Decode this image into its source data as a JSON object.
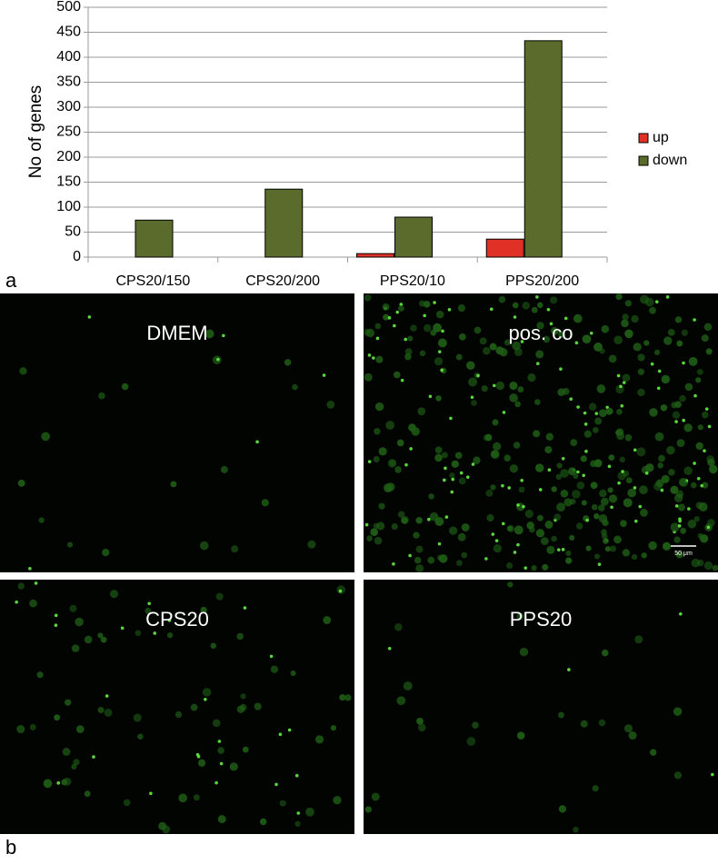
{
  "chart_data": {
    "type": "bar",
    "y_label": "No of genes",
    "categories": [
      "CPS20/150",
      "CPS20/200",
      "PPS20/10",
      "PPS20/200"
    ],
    "series": [
      {
        "name": "up",
        "color": "#e03127",
        "values": [
          0,
          0,
          7,
          36
        ]
      },
      {
        "name": "down",
        "color": "#5a6b2b",
        "values": [
          74,
          136,
          80,
          433
        ]
      }
    ],
    "ylim": [
      0,
      500
    ],
    "yticks": [
      0,
      50,
      100,
      150,
      200,
      250,
      300,
      350,
      400,
      450,
      500
    ],
    "grid": true
  },
  "panel_labels": [
    "a",
    "b"
  ],
  "images": [
    {
      "label": "DMEM"
    },
    {
      "label": "pos. co",
      "scale_bar": "50 μm"
    },
    {
      "label": "CPS20"
    },
    {
      "label": "PPS20"
    }
  ]
}
